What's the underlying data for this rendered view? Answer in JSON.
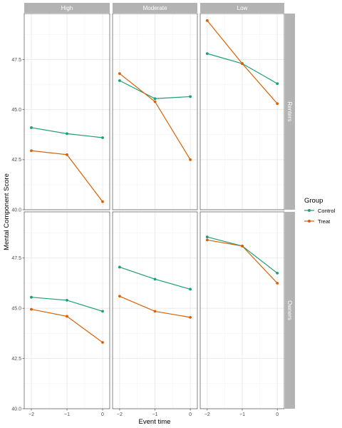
{
  "chart_data": {
    "type": "line",
    "xlabel": "Event time",
    "ylabel": "Mental Component Score",
    "x": [
      -2,
      -1,
      0
    ],
    "x_tick_labels": [
      "−2",
      "−1",
      "0"
    ],
    "xlim": [
      -2.2,
      0.2
    ],
    "ylim": [
      40.0,
      49.8
    ],
    "y_ticks": [
      40.0,
      42.5,
      45.0,
      47.5
    ],
    "y_tick_labels": [
      "40.0",
      "42.5",
      "45.0",
      "47.5"
    ],
    "grid": true,
    "legend": {
      "title": "Group",
      "position": "right",
      "entries": [
        {
          "label": "Control",
          "color": "#1b9e77"
        },
        {
          "label": "Treat",
          "color": "#d95f02"
        }
      ]
    },
    "column_facets": [
      "High",
      "Moderate",
      "Low"
    ],
    "row_facets": [
      "Renters",
      "Owners"
    ],
    "panels": [
      {
        "row": "Renters",
        "col": "High",
        "series": [
          {
            "name": "Control",
            "values": [
              44.1,
              43.8,
              43.6
            ]
          },
          {
            "name": "Treat",
            "values": [
              42.95,
              42.75,
              40.4
            ]
          }
        ]
      },
      {
        "row": "Renters",
        "col": "Moderate",
        "series": [
          {
            "name": "Control",
            "values": [
              46.45,
              45.55,
              45.65
            ]
          },
          {
            "name": "Treat",
            "values": [
              46.8,
              45.4,
              42.5
            ]
          }
        ]
      },
      {
        "row": "Renters",
        "col": "Low",
        "series": [
          {
            "name": "Control",
            "values": [
              47.8,
              47.3,
              46.3
            ]
          },
          {
            "name": "Treat",
            "values": [
              49.45,
              47.3,
              45.3
            ]
          }
        ]
      },
      {
        "row": "Owners",
        "col": "High",
        "series": [
          {
            "name": "Control",
            "values": [
              45.55,
              45.4,
              44.85
            ]
          },
          {
            "name": "Treat",
            "values": [
              44.95,
              44.6,
              43.3
            ]
          }
        ]
      },
      {
        "row": "Owners",
        "col": "Moderate",
        "series": [
          {
            "name": "Control",
            "values": [
              47.05,
              46.45,
              45.95
            ]
          },
          {
            "name": "Treat",
            "values": [
              45.6,
              44.85,
              44.55
            ]
          }
        ]
      },
      {
        "row": "Owners",
        "col": "Low",
        "series": [
          {
            "name": "Control",
            "values": [
              48.55,
              48.1,
              46.75
            ]
          },
          {
            "name": "Treat",
            "values": [
              48.4,
              48.1,
              46.25
            ]
          }
        ]
      }
    ]
  }
}
